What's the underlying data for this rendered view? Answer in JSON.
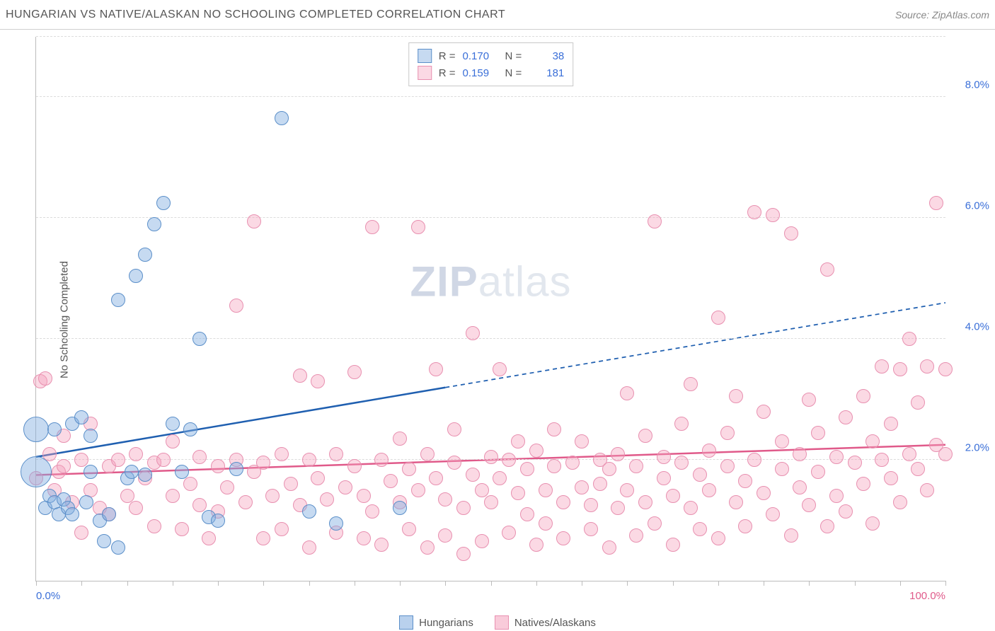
{
  "title": "HUNGARIAN VS NATIVE/ALASKAN NO SCHOOLING COMPLETED CORRELATION CHART",
  "source": "Source: ZipAtlas.com",
  "ylabel": "No Schooling Completed",
  "watermark_bold": "ZIP",
  "watermark_light": "atlas",
  "colors": {
    "blue_fill": "rgba(128,172,223,0.45)",
    "blue_stroke": "#5b8fc9",
    "blue_line": "#1f5fb0",
    "pink_fill": "rgba(244,160,188,0.4)",
    "pink_stroke": "#e890b0",
    "pink_line": "#e05a8a",
    "grid": "#dcdcdc",
    "axis": "#bcbcbc",
    "tick_label_blue": "#3a6fd8",
    "tick_label_pink": "#e05a8a"
  },
  "chart": {
    "type": "scatter",
    "xlim": [
      0,
      100
    ],
    "ylim": [
      0,
      9
    ],
    "xtick_step": 5,
    "xtick_labels": [
      {
        "x": 0,
        "label": "0.0%",
        "color": "#3a6fd8"
      },
      {
        "x": 100,
        "label": "100.0%",
        "color": "#e05a8a"
      }
    ],
    "ygrid": [
      {
        "y": 2,
        "label": "2.0%"
      },
      {
        "y": 4,
        "label": "4.0%"
      },
      {
        "y": 6,
        "label": "6.0%"
      },
      {
        "y": 8,
        "label": "8.0%"
      }
    ],
    "ytick_color": "#3a6fd8",
    "marker_radius": 10,
    "marker_stroke_width": 1.5,
    "trend_width": 2.5,
    "series": [
      {
        "name": "Hungarians",
        "fill": "rgba(128,172,223,0.45)",
        "stroke": "#5b8fc9",
        "line_color": "#1f5fb0",
        "R": "0.170",
        "N": "38",
        "trend": {
          "x1": 0,
          "y1": 2.05,
          "x2": 100,
          "y2": 4.6,
          "solid_until_x": 45
        },
        "points": [
          [
            0,
            1.8,
            22
          ],
          [
            0,
            2.5,
            18
          ],
          [
            1,
            1.2
          ],
          [
            1.5,
            1.4
          ],
          [
            2,
            1.3
          ],
          [
            2.5,
            1.1
          ],
          [
            2,
            2.5
          ],
          [
            3,
            1.35
          ],
          [
            3.5,
            1.2
          ],
          [
            4,
            1.1
          ],
          [
            4,
            2.6
          ],
          [
            5,
            2.7
          ],
          [
            5.5,
            1.3
          ],
          [
            6,
            1.8
          ],
          [
            6,
            2.4
          ],
          [
            7,
            1.0
          ],
          [
            7.5,
            0.65
          ],
          [
            8,
            1.1
          ],
          [
            9,
            0.55
          ],
          [
            9,
            4.65
          ],
          [
            10,
            1.7
          ],
          [
            10.5,
            1.8
          ],
          [
            11,
            5.05
          ],
          [
            12,
            5.4
          ],
          [
            12,
            1.75
          ],
          [
            13,
            5.9
          ],
          [
            14,
            6.25
          ],
          [
            15,
            2.6
          ],
          [
            16,
            1.8
          ],
          [
            17,
            2.5
          ],
          [
            18,
            4.0
          ],
          [
            19,
            1.05
          ],
          [
            20,
            1.0
          ],
          [
            22,
            1.85
          ],
          [
            27,
            7.65
          ],
          [
            30,
            1.15
          ],
          [
            33,
            0.95
          ],
          [
            40,
            1.2
          ]
        ]
      },
      {
        "name": "Natives/Alaskans",
        "fill": "rgba(244,160,188,0.4)",
        "stroke": "#e890b0",
        "line_color": "#e05a8a",
        "R": "0.159",
        "N": "181",
        "trend": {
          "x1": 0,
          "y1": 1.75,
          "x2": 100,
          "y2": 2.25,
          "solid_until_x": 100
        },
        "points": [
          [
            0,
            1.7
          ],
          [
            0.5,
            3.3
          ],
          [
            1,
            3.35
          ],
          [
            1.5,
            2.1
          ],
          [
            2,
            1.5
          ],
          [
            2.5,
            1.8
          ],
          [
            3,
            1.9
          ],
          [
            3,
            2.4
          ],
          [
            4,
            1.3
          ],
          [
            5,
            2.0
          ],
          [
            5,
            0.8
          ],
          [
            6,
            1.5
          ],
          [
            6,
            2.6
          ],
          [
            7,
            1.2
          ],
          [
            8,
            1.9
          ],
          [
            8,
            1.1
          ],
          [
            9,
            2.0
          ],
          [
            10,
            1.4
          ],
          [
            11,
            2.1
          ],
          [
            11,
            1.2
          ],
          [
            12,
            1.7
          ],
          [
            13,
            1.95
          ],
          [
            13,
            0.9
          ],
          [
            14,
            2.0
          ],
          [
            15,
            1.4
          ],
          [
            15,
            2.3
          ],
          [
            16,
            0.85
          ],
          [
            17,
            1.6
          ],
          [
            18,
            2.05
          ],
          [
            18,
            1.25
          ],
          [
            19,
            0.7
          ],
          [
            20,
            1.9
          ],
          [
            20,
            1.15
          ],
          [
            21,
            1.55
          ],
          [
            22,
            2.0
          ],
          [
            22,
            4.55
          ],
          [
            23,
            1.3
          ],
          [
            24,
            1.8
          ],
          [
            24,
            5.95
          ],
          [
            25,
            0.7
          ],
          [
            25,
            1.95
          ],
          [
            26,
            1.4
          ],
          [
            27,
            2.1
          ],
          [
            27,
            0.85
          ],
          [
            28,
            1.6
          ],
          [
            29,
            1.25
          ],
          [
            29,
            3.4
          ],
          [
            30,
            2.0
          ],
          [
            30,
            0.55
          ],
          [
            31,
            1.7
          ],
          [
            31,
            3.3
          ],
          [
            32,
            1.35
          ],
          [
            33,
            2.1
          ],
          [
            33,
            0.8
          ],
          [
            34,
            1.55
          ],
          [
            35,
            1.9
          ],
          [
            35,
            3.45
          ],
          [
            36,
            0.7
          ],
          [
            36,
            1.4
          ],
          [
            37,
            5.85
          ],
          [
            37,
            1.15
          ],
          [
            38,
            2.0
          ],
          [
            38,
            0.6
          ],
          [
            39,
            1.65
          ],
          [
            40,
            1.3
          ],
          [
            40,
            2.35
          ],
          [
            41,
            0.85
          ],
          [
            41,
            1.85
          ],
          [
            42,
            1.5
          ],
          [
            42,
            5.85
          ],
          [
            43,
            2.1
          ],
          [
            43,
            0.55
          ],
          [
            44,
            1.7
          ],
          [
            44,
            3.5
          ],
          [
            45,
            1.35
          ],
          [
            45,
            0.75
          ],
          [
            46,
            1.95
          ],
          [
            46,
            2.5
          ],
          [
            47,
            1.2
          ],
          [
            47,
            0.45
          ],
          [
            48,
            1.75
          ],
          [
            48,
            4.1
          ],
          [
            49,
            1.5
          ],
          [
            49,
            0.65
          ],
          [
            50,
            2.05
          ],
          [
            50,
            1.3
          ],
          [
            51,
            3.5
          ],
          [
            51,
            1.7
          ],
          [
            52,
            0.8
          ],
          [
            52,
            2.0
          ],
          [
            53,
            1.45
          ],
          [
            53,
            2.3
          ],
          [
            54,
            1.1
          ],
          [
            54,
            1.85
          ],
          [
            55,
            0.6
          ],
          [
            55,
            2.15
          ],
          [
            56,
            1.5
          ],
          [
            56,
            0.95
          ],
          [
            57,
            1.9
          ],
          [
            57,
            2.5
          ],
          [
            58,
            1.3
          ],
          [
            58,
            0.7
          ],
          [
            59,
            1.95
          ],
          [
            60,
            1.55
          ],
          [
            60,
            2.3
          ],
          [
            61,
            0.85
          ],
          [
            61,
            1.25
          ],
          [
            62,
            2.0
          ],
          [
            62,
            1.6
          ],
          [
            63,
            0.55
          ],
          [
            63,
            1.85
          ],
          [
            64,
            1.2
          ],
          [
            64,
            2.1
          ],
          [
            65,
            3.1
          ],
          [
            65,
            1.5
          ],
          [
            66,
            0.75
          ],
          [
            66,
            1.9
          ],
          [
            67,
            2.4
          ],
          [
            67,
            1.3
          ],
          [
            68,
            0.95
          ],
          [
            68,
            5.95
          ],
          [
            69,
            1.7
          ],
          [
            69,
            2.05
          ],
          [
            70,
            1.4
          ],
          [
            70,
            0.6
          ],
          [
            71,
            1.95
          ],
          [
            71,
            2.6
          ],
          [
            72,
            1.2
          ],
          [
            72,
            3.25
          ],
          [
            73,
            1.75
          ],
          [
            73,
            0.85
          ],
          [
            74,
            2.15
          ],
          [
            74,
            1.5
          ],
          [
            75,
            0.7
          ],
          [
            75,
            4.35
          ],
          [
            76,
            1.9
          ],
          [
            76,
            2.45
          ],
          [
            77,
            1.3
          ],
          [
            77,
            3.05
          ],
          [
            78,
            1.65
          ],
          [
            78,
            0.9
          ],
          [
            79,
            2.0
          ],
          [
            79,
            6.1
          ],
          [
            80,
            1.45
          ],
          [
            80,
            2.8
          ],
          [
            81,
            1.1
          ],
          [
            81,
            6.05
          ],
          [
            82,
            1.85
          ],
          [
            82,
            2.3
          ],
          [
            83,
            0.75
          ],
          [
            83,
            5.75
          ],
          [
            84,
            2.1
          ],
          [
            84,
            1.55
          ],
          [
            85,
            3.0
          ],
          [
            85,
            1.25
          ],
          [
            86,
            2.45
          ],
          [
            86,
            1.8
          ],
          [
            87,
            0.9
          ],
          [
            87,
            5.15
          ],
          [
            88,
            2.05
          ],
          [
            88,
            1.4
          ],
          [
            89,
            2.7
          ],
          [
            89,
            1.15
          ],
          [
            90,
            1.95
          ],
          [
            91,
            3.05
          ],
          [
            91,
            1.6
          ],
          [
            92,
            2.3
          ],
          [
            92,
            0.95
          ],
          [
            93,
            2.0
          ],
          [
            93,
            3.55
          ],
          [
            94,
            1.7
          ],
          [
            94,
            2.6
          ],
          [
            95,
            1.3
          ],
          [
            95,
            3.5
          ],
          [
            96,
            2.1
          ],
          [
            96,
            4.0
          ],
          [
            97,
            1.85
          ],
          [
            97,
            2.95
          ],
          [
            98,
            1.5
          ],
          [
            98,
            3.55
          ],
          [
            99,
            2.25
          ],
          [
            99,
            6.25
          ],
          [
            100,
            2.1
          ],
          [
            100,
            3.5
          ]
        ]
      }
    ]
  },
  "legend": {
    "items": [
      {
        "label": "Hungarians",
        "fill": "rgba(128,172,223,0.55)",
        "stroke": "#5b8fc9"
      },
      {
        "label": "Natives/Alaskans",
        "fill": "rgba(244,160,188,0.55)",
        "stroke": "#e890b0"
      }
    ]
  }
}
